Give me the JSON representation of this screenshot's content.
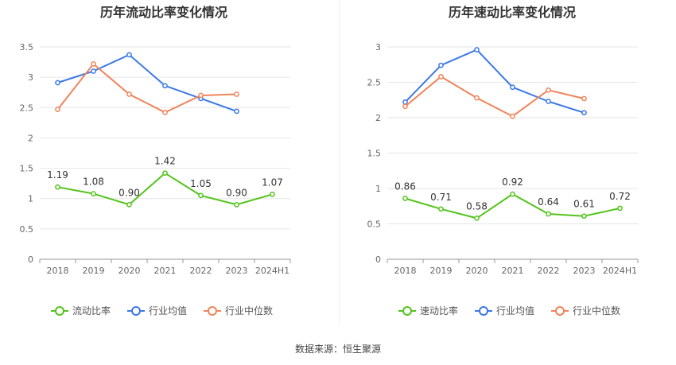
{
  "source": "数据来源：恒生聚源",
  "chart_data": [
    {
      "type": "line",
      "title": "历年流动比率变化情况",
      "categories": [
        "2018",
        "2019",
        "2020",
        "2021",
        "2022",
        "2023",
        "2024H1"
      ],
      "yticks": [
        "0",
        "0.5",
        "1",
        "1.5",
        "2",
        "2.5",
        "3",
        "3.5"
      ],
      "ylim": [
        0,
        3.5
      ],
      "grid": true,
      "legend": "bottom",
      "series": [
        {
          "name": "流动比率",
          "color": "#52c41a",
          "values": [
            1.19,
            1.08,
            0.9,
            1.42,
            1.05,
            0.9,
            1.07
          ],
          "labels": [
            "1.19",
            "1.08",
            "0.90",
            "1.42",
            "1.05",
            "0.90",
            "1.07"
          ]
        },
        {
          "name": "行业均值",
          "color": "#3b78e7",
          "values": [
            2.91,
            3.1,
            3.37,
            2.86,
            2.65,
            2.44,
            null
          ]
        },
        {
          "name": "行业中位数",
          "color": "#f0845a",
          "values": [
            2.47,
            3.22,
            2.72,
            2.42,
            2.7,
            2.72,
            null
          ]
        }
      ]
    },
    {
      "type": "line",
      "title": "历年速动比率变化情况",
      "categories": [
        "2018",
        "2019",
        "2020",
        "2021",
        "2022",
        "2023",
        "2024H1"
      ],
      "yticks": [
        "0",
        "0.5",
        "1",
        "1.5",
        "2",
        "2.5",
        "3"
      ],
      "ylim": [
        0,
        3
      ],
      "grid": true,
      "legend": "bottom",
      "series": [
        {
          "name": "速动比率",
          "color": "#52c41a",
          "values": [
            0.86,
            0.71,
            0.58,
            0.92,
            0.64,
            0.61,
            0.72
          ],
          "labels": [
            "0.86",
            "0.71",
            "0.58",
            "0.92",
            "0.64",
            "0.61",
            "0.72"
          ]
        },
        {
          "name": "行业均值",
          "color": "#3b78e7",
          "values": [
            2.22,
            2.74,
            2.96,
            2.43,
            2.23,
            2.07,
            null
          ]
        },
        {
          "name": "行业中位数",
          "color": "#f0845a",
          "values": [
            2.16,
            2.58,
            2.28,
            2.02,
            2.39,
            2.27,
            null
          ]
        }
      ]
    }
  ]
}
